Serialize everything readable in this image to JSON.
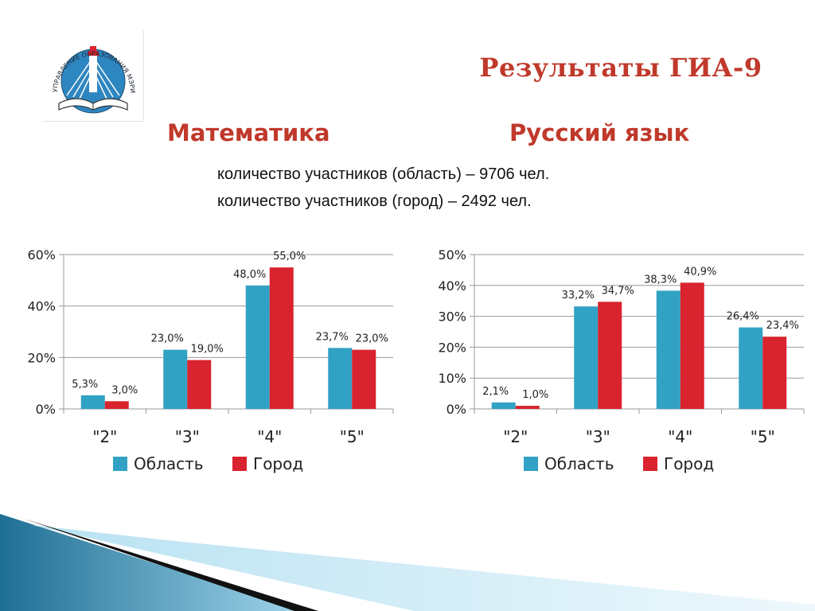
{
  "slide": {
    "title": "Результаты ГИА-9",
    "subjects": [
      "Математика",
      "Русский язык"
    ],
    "participants_region": "количество участников (область) – 9706 чел.",
    "participants_city": "количество участников (город) – 2492 чел."
  },
  "logo": {
    "text": "УПРАВЛЕНИЕ ОБРАЗОВАНИЯ МЭРИИ г. ЧЕРЕПОВЦА",
    "icon": "book-and-bridge-emblem"
  },
  "colors": {
    "title": "#c0392b",
    "oblast": "#31a2c4",
    "gorod": "#d9232e"
  },
  "chart_data": [
    {
      "type": "bar",
      "categories": [
        "\"2\"",
        "\"3\"",
        "\"4\"",
        "\"5\""
      ],
      "series": [
        {
          "name": "Область",
          "values": [
            5.3,
            23.0,
            48.0,
            23.7
          ],
          "labels": [
            "5,3%",
            "23,0%",
            "48,0%",
            "23,7%"
          ]
        },
        {
          "name": "Город",
          "values": [
            3.0,
            19.0,
            55.0,
            23.0
          ],
          "labels": [
            "3,0%",
            "19,0%",
            "55,0%",
            "23,0%"
          ]
        }
      ],
      "ylim": [
        0,
        60
      ],
      "yticks": [
        "0%",
        "20%",
        "40%",
        "60%"
      ],
      "ytick_values": [
        0,
        20,
        40,
        60
      ],
      "grid": true,
      "legend": "bottom"
    },
    {
      "type": "bar",
      "categories": [
        "\"2\"",
        "\"3\"",
        "\"4\"",
        "\"5\""
      ],
      "series": [
        {
          "name": "Область",
          "values": [
            2.1,
            33.2,
            38.3,
            26.4
          ],
          "labels": [
            "2,1%",
            "33,2%",
            "38,3%",
            "26,4%"
          ]
        },
        {
          "name": "Город",
          "values": [
            1.0,
            34.7,
            40.9,
            23.4
          ],
          "labels": [
            "1,0%",
            "34,7%",
            "40,9%",
            "23,4%"
          ]
        }
      ],
      "ylim": [
        0,
        50
      ],
      "yticks": [
        "0%",
        "10%",
        "20%",
        "30%",
        "40%",
        "50%"
      ],
      "ytick_values": [
        0,
        10,
        20,
        30,
        40,
        50
      ],
      "grid": true,
      "legend": "bottom"
    }
  ]
}
